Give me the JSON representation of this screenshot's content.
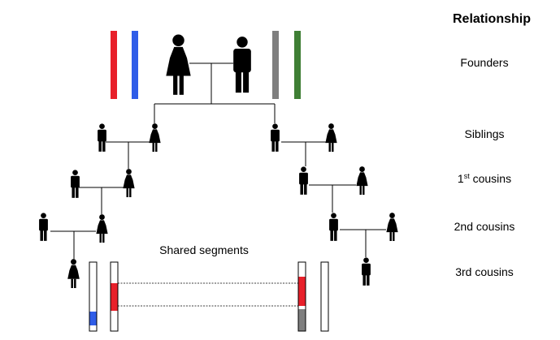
{
  "relationship_header": "Relationship",
  "generations": {
    "founders": "Founders",
    "siblings": "Siblings",
    "first_cousins_prefix": "1",
    "first_cousins_sup": "st",
    "first_cousins_suffix": " cousins",
    "second_cousins": "2nd cousins",
    "third_cousins": "3rd cousins"
  },
  "shared_segments_label": "Shared segments",
  "colors": {
    "red": "#e8202a",
    "blue": "#2f5de8",
    "gray": "#7f7f7f",
    "green": "#3f7f35",
    "line": "#000000"
  }
}
